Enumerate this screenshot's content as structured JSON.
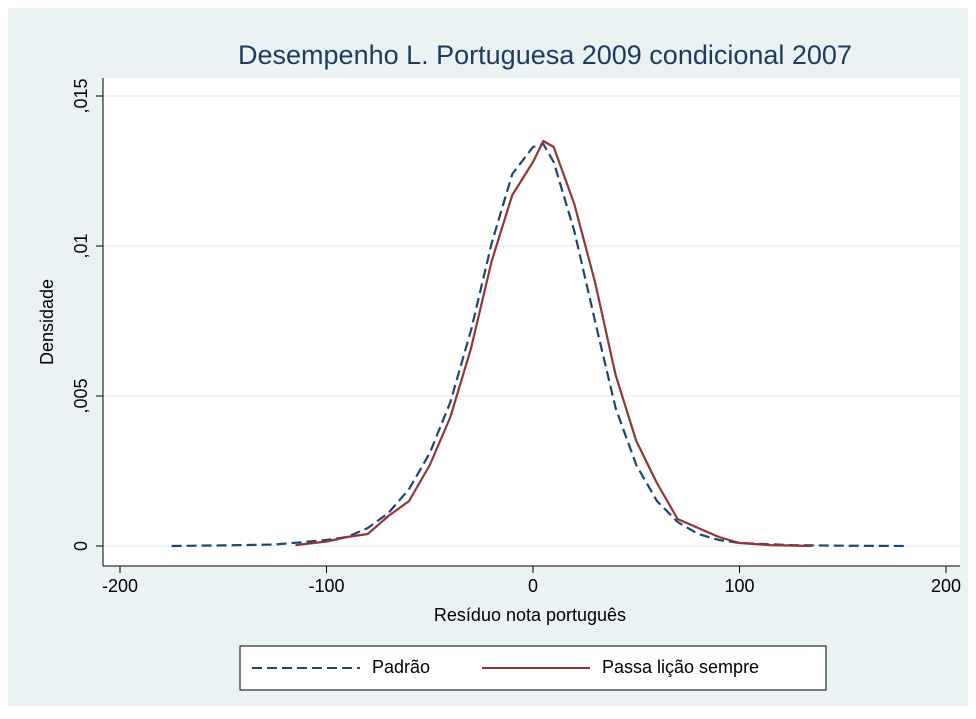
{
  "chart_data": {
    "type": "line",
    "title": "Desempenho L. Portuguesa 2009 condicional 2007",
    "x_label": "Resíduo nota português",
    "y_label": "Densidade",
    "xlim": [
      -200,
      200
    ],
    "xticks": [
      -200,
      -100,
      0,
      100,
      200
    ],
    "ylim": [
      0,
      0.015
    ],
    "yticks": [
      0,
      {
        "value": 0.005,
        "label": ",005"
      },
      {
        "value": 0.01,
        "label": ",01"
      },
      {
        "value": 0.015,
        "label": ",015"
      }
    ],
    "grid": true,
    "series": [
      {
        "name": "Padrão",
        "color": "#1a476f",
        "dash": true,
        "x": [
          -175,
          -150,
          -125,
          -100,
          -90,
          -80,
          -70,
          -60,
          -50,
          -40,
          -30,
          -20,
          -10,
          0,
          5,
          10,
          20,
          30,
          40,
          50,
          60,
          70,
          80,
          90,
          100,
          125,
          150,
          180
        ],
        "values": [
          0,
          2e-05,
          5e-05,
          0.0002,
          0.0003,
          0.0006,
          0.0011,
          0.0019,
          0.0031,
          0.0048,
          0.0072,
          0.0101,
          0.0124,
          0.0133,
          0.0134,
          0.0128,
          0.0105,
          0.0075,
          0.0046,
          0.0027,
          0.0015,
          0.0008,
          0.0004,
          0.0002,
          0.0001,
          3e-05,
          1e-05,
          0
        ]
      },
      {
        "name": "Passa lição sempre",
        "color": "#90353b",
        "dash": false,
        "x": [
          -115,
          -100,
          -90,
          -80,
          -70,
          -60,
          -50,
          -40,
          -30,
          -20,
          -10,
          0,
          5,
          10,
          20,
          30,
          40,
          50,
          60,
          70,
          80,
          90,
          100,
          115,
          135
        ],
        "values": [
          3e-05,
          0.00015,
          0.0003,
          0.0004,
          0.001,
          0.0015,
          0.0027,
          0.0043,
          0.0066,
          0.0095,
          0.0117,
          0.0128,
          0.0135,
          0.0133,
          0.0114,
          0.0088,
          0.0057,
          0.0035,
          0.0021,
          0.0009,
          0.0006,
          0.0003,
          0.0001,
          3e-05,
          0
        ]
      }
    ],
    "legend": "bottom"
  }
}
